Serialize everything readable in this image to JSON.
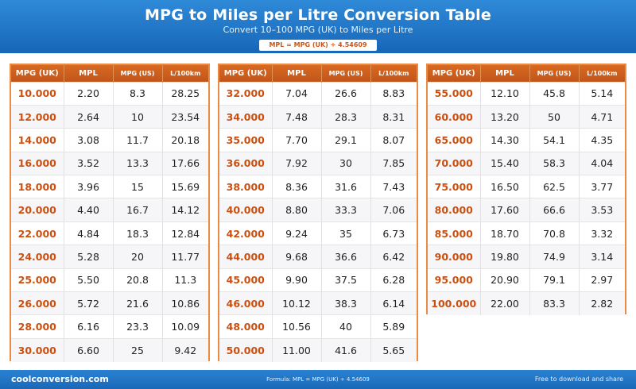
{
  "header": {
    "title": "MPG to Miles per Litre Conversion Table",
    "subtitle": "Convert 10–100 MPG (UK) to Miles per Litre",
    "formula": "MPL = MPG (UK) ÷ 4.54609"
  },
  "columns": [
    "MPG (UK)",
    "MPL",
    "MPG (US)",
    "L/100km"
  ],
  "tables": [
    {
      "rows": [
        [
          "10.000",
          "2.20",
          "8.3",
          "28.25"
        ],
        [
          "12.000",
          "2.64",
          "10",
          "23.54"
        ],
        [
          "14.000",
          "3.08",
          "11.7",
          "20.18"
        ],
        [
          "16.000",
          "3.52",
          "13.3",
          "17.66"
        ],
        [
          "18.000",
          "3.96",
          "15",
          "15.69"
        ],
        [
          "20.000",
          "4.40",
          "16.7",
          "14.12"
        ],
        [
          "22.000",
          "4.84",
          "18.3",
          "12.84"
        ],
        [
          "24.000",
          "5.28",
          "20",
          "11.77"
        ],
        [
          "25.000",
          "5.50",
          "20.8",
          "11.3"
        ],
        [
          "26.000",
          "5.72",
          "21.6",
          "10.86"
        ],
        [
          "28.000",
          "6.16",
          "23.3",
          "10.09"
        ],
        [
          "30.000",
          "6.60",
          "25",
          "9.42"
        ]
      ]
    },
    {
      "rows": [
        [
          "32.000",
          "7.04",
          "26.6",
          "8.83"
        ],
        [
          "34.000",
          "7.48",
          "28.3",
          "8.31"
        ],
        [
          "35.000",
          "7.70",
          "29.1",
          "8.07"
        ],
        [
          "36.000",
          "7.92",
          "30",
          "7.85"
        ],
        [
          "38.000",
          "8.36",
          "31.6",
          "7.43"
        ],
        [
          "40.000",
          "8.80",
          "33.3",
          "7.06"
        ],
        [
          "42.000",
          "9.24",
          "35",
          "6.73"
        ],
        [
          "44.000",
          "9.68",
          "36.6",
          "6.42"
        ],
        [
          "45.000",
          "9.90",
          "37.5",
          "6.28"
        ],
        [
          "46.000",
          "10.12",
          "38.3",
          "6.14"
        ],
        [
          "48.000",
          "10.56",
          "40",
          "5.89"
        ],
        [
          "50.000",
          "11.00",
          "41.6",
          "5.65"
        ]
      ]
    },
    {
      "rows": [
        [
          "55.000",
          "12.10",
          "45.8",
          "5.14"
        ],
        [
          "60.000",
          "13.20",
          "50",
          "4.71"
        ],
        [
          "65.000",
          "14.30",
          "54.1",
          "4.35"
        ],
        [
          "70.000",
          "15.40",
          "58.3",
          "4.04"
        ],
        [
          "75.000",
          "16.50",
          "62.5",
          "3.77"
        ],
        [
          "80.000",
          "17.60",
          "66.6",
          "3.53"
        ],
        [
          "85.000",
          "18.70",
          "70.8",
          "3.32"
        ],
        [
          "90.000",
          "19.80",
          "74.9",
          "3.14"
        ],
        [
          "95.000",
          "20.90",
          "79.1",
          "2.97"
        ],
        [
          "100.000",
          "22.00",
          "83.3",
          "2.82"
        ]
      ]
    }
  ],
  "footer": {
    "site": "coolconversion.com",
    "formula_note": "Formula: MPL = MPG (UK) ÷ 4.54609",
    "tagline": "Free to download and share"
  },
  "colors": {
    "header_blue": "#1f74c6",
    "accent_orange": "#c9561a",
    "key_text": "#cc4f0f"
  }
}
